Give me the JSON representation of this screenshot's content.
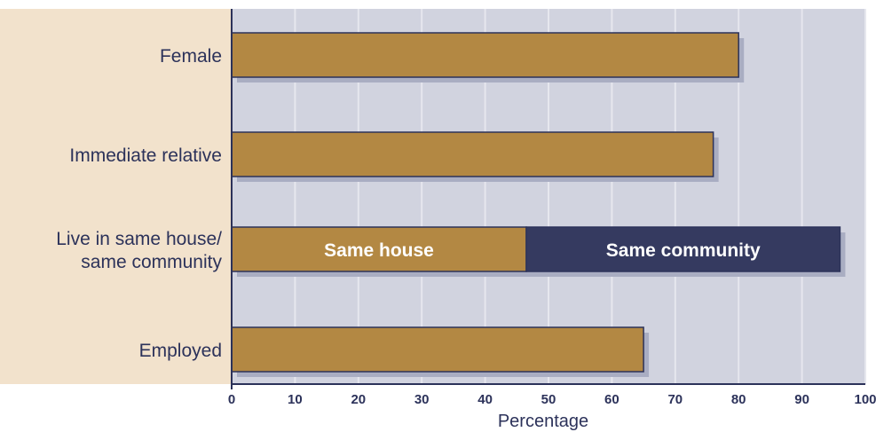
{
  "colors": {
    "label_panel": "#f2e2cc",
    "plot_background": "#d1d3df",
    "grid": "#e6e7ee",
    "axis": "#2c325a",
    "bar_primary": "#b38843",
    "bar_secondary": "#353a60",
    "bar_shadow": "#a9adc2",
    "bar_text": "#ffffff",
    "text": "#2c325a"
  },
  "chart_data": {
    "type": "bar",
    "orientation": "horizontal",
    "title": "",
    "xlabel": "Percentage",
    "ylabel": "",
    "xlim": [
      0,
      100
    ],
    "xticks": [
      "0",
      "10",
      "20",
      "30",
      "40",
      "50",
      "60",
      "70",
      "80",
      "90",
      "100"
    ],
    "grid": true,
    "categories": [
      [
        "Female"
      ],
      [
        "Immediate relative"
      ],
      [
        "Live in same house/",
        "same community"
      ],
      [
        "Employed"
      ]
    ],
    "series": [
      {
        "name": "Same house",
        "values": [
          80,
          76,
          46.5,
          65
        ]
      },
      {
        "name": "Same community",
        "values": [
          0,
          0,
          49.5,
          0
        ]
      }
    ]
  }
}
